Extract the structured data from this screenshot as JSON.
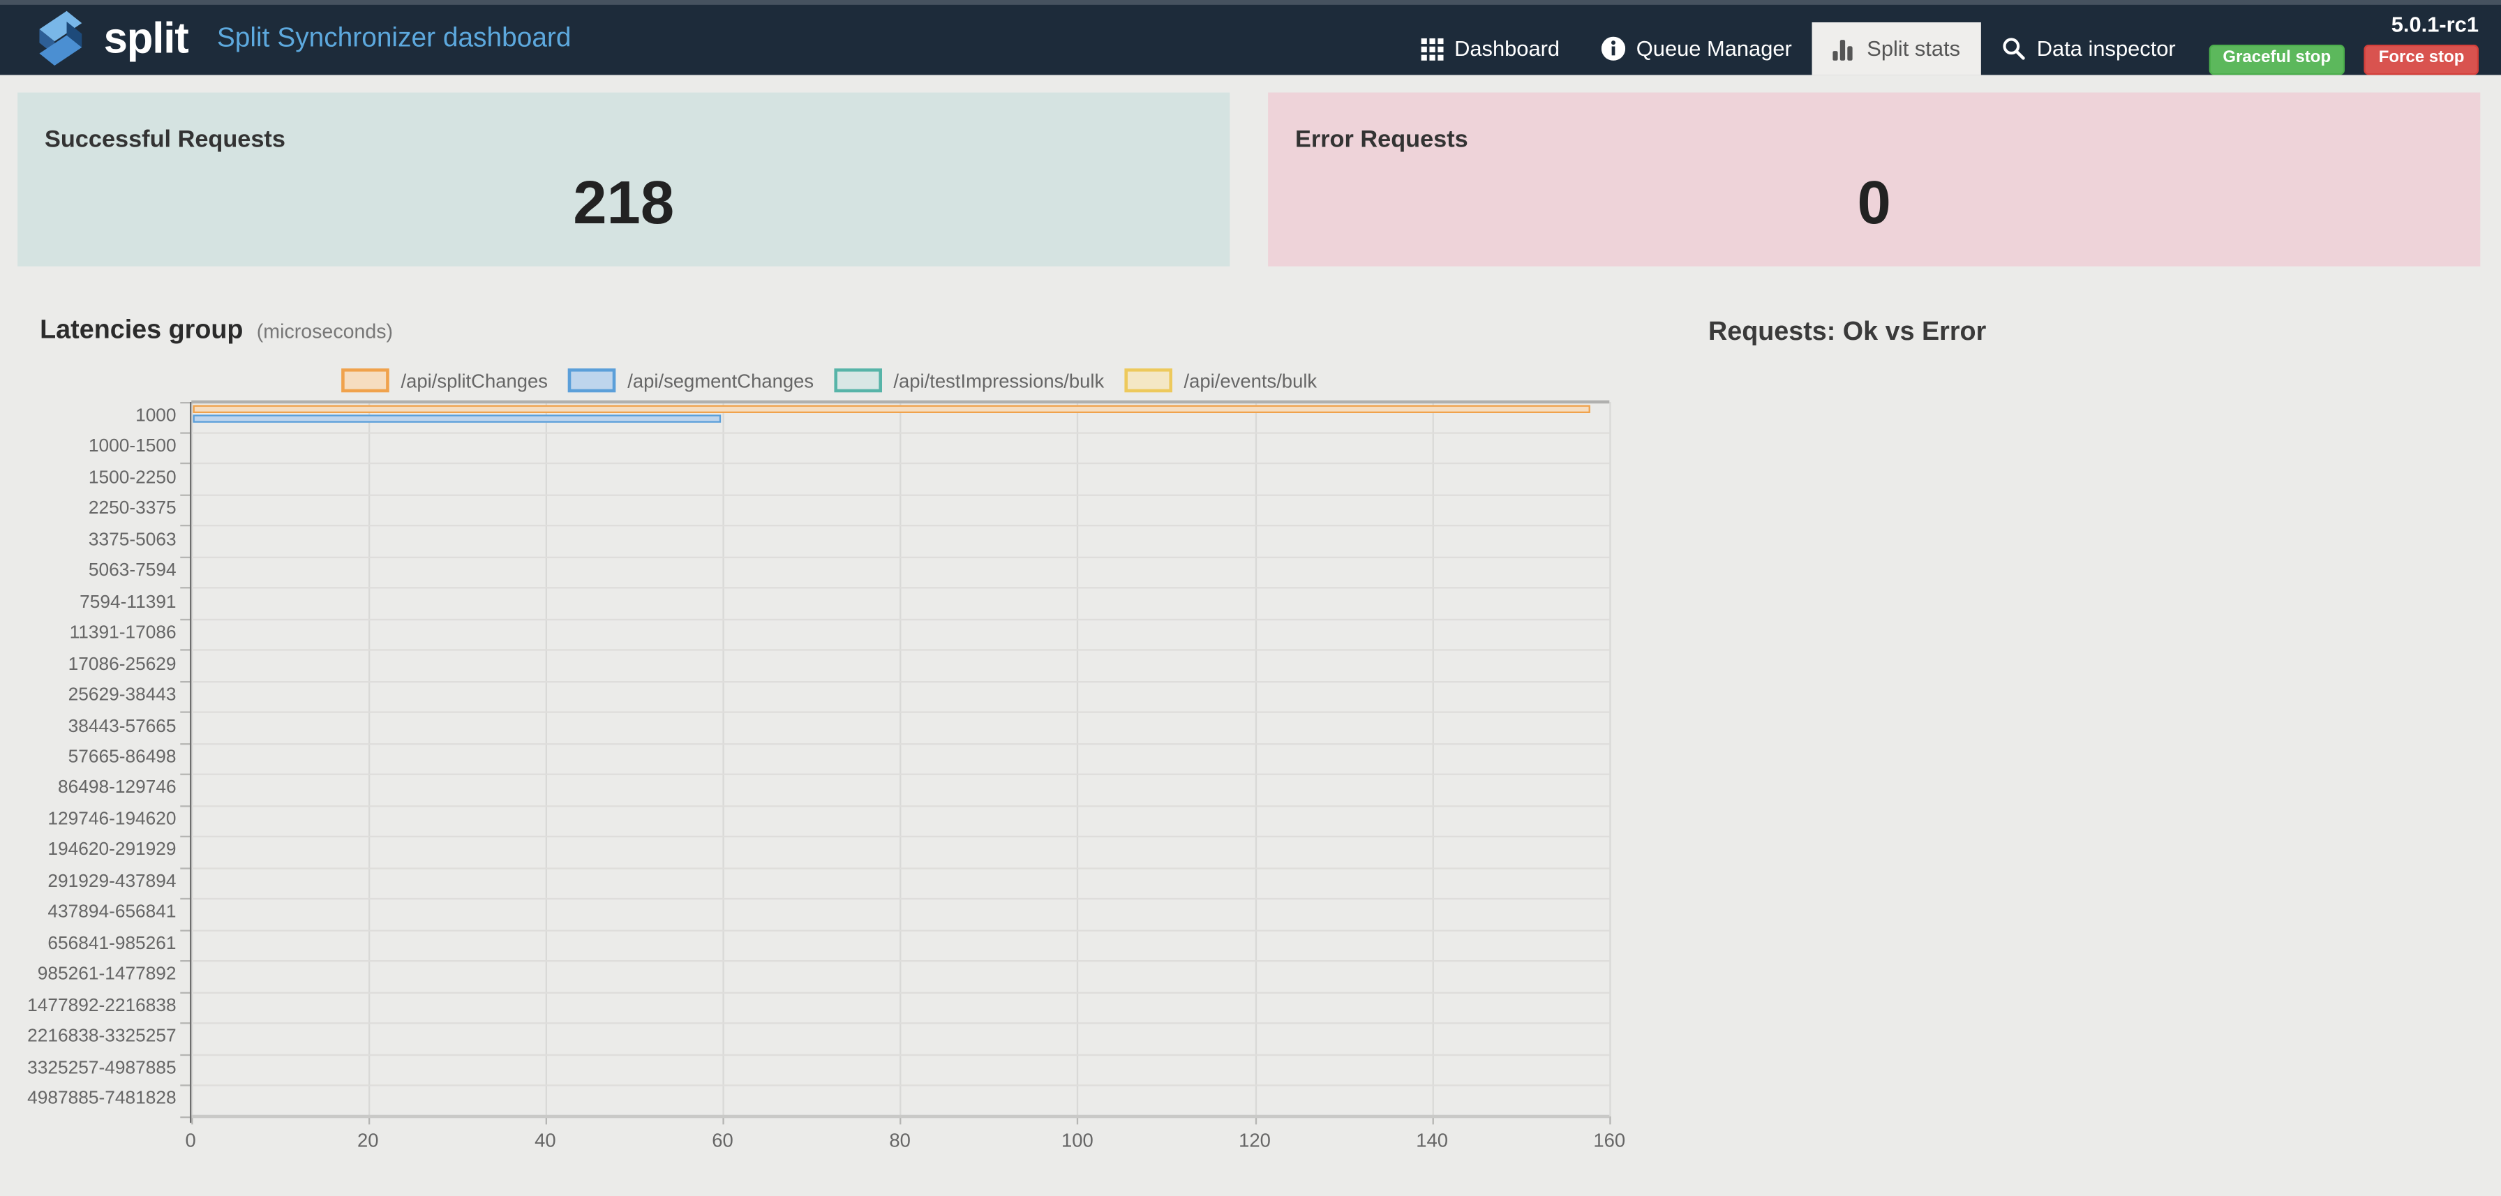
{
  "navbar": {
    "brand": "split",
    "title": "Split Synchronizer dashboard",
    "version": "5.0.1-rc1",
    "items": [
      {
        "label": "Dashboard",
        "icon": "grid-icon",
        "active": false
      },
      {
        "label": "Queue Manager",
        "icon": "info-circle-icon",
        "active": false
      },
      {
        "label": "Split stats",
        "icon": "bar-chart-icon",
        "active": true
      },
      {
        "label": "Data inspector",
        "icon": "search-icon",
        "active": false
      }
    ],
    "graceful_stop": "Graceful stop",
    "force_stop": "Force stop",
    "colors": {
      "bar_background": "#1d2b3a",
      "title_blue": "#5da9de",
      "graceful_green": "#5cb85c",
      "force_red": "#d9534f",
      "active_tab_background": "#efeeec"
    }
  },
  "cards": {
    "success": {
      "title": "Successful Requests",
      "value": "218",
      "background": "#d5e3e1"
    },
    "error": {
      "title": "Error Requests",
      "value": "0",
      "background": "#eed3d9"
    }
  },
  "latencies": {
    "title": "Latencies group",
    "subtitle": "(microseconds)"
  },
  "requests_chart": {
    "title": "Requests: Ok vs Error"
  },
  "chart_data": [
    {
      "type": "bar",
      "orientation": "horizontal",
      "title": "Latencies group (microseconds)",
      "legend_position": "top",
      "grid": true,
      "xlim": [
        0,
        160
      ],
      "x_ticks": [
        0,
        20,
        40,
        60,
        80,
        100,
        120,
        140,
        160
      ],
      "categories": [
        "1000",
        "1000-1500",
        "1500-2250",
        "2250-3375",
        "3375-5063",
        "5063-7594",
        "7594-11391",
        "11391-17086",
        "17086-25629",
        "25629-38443",
        "38443-57665",
        "57665-86498",
        "86498-129746",
        "129746-194620",
        "194620-291929",
        "291929-437894",
        "437894-656841",
        "656841-985261",
        "985261-1477892",
        "1477892-2216838",
        "2216838-3325257",
        "3325257-4987885",
        "4987885-7481828"
      ],
      "series": [
        {
          "name": "/api/splitChanges",
          "fill": "#f6ddc0",
          "border": "#f0a24c",
          "values": [
            158,
            0,
            0,
            0,
            0,
            0,
            0,
            0,
            0,
            0,
            0,
            0,
            0,
            0,
            0,
            0,
            0,
            0,
            0,
            0,
            0,
            0,
            0
          ]
        },
        {
          "name": "/api/segmentChanges",
          "fill": "#bed5ed",
          "border": "#5b9fd9",
          "values": [
            60,
            0,
            0,
            0,
            0,
            0,
            0,
            0,
            0,
            0,
            0,
            0,
            0,
            0,
            0,
            0,
            0,
            0,
            0,
            0,
            0,
            0,
            0
          ]
        },
        {
          "name": "/api/testImpressions/bulk",
          "fill": "#d8e7e5",
          "border": "#57b4a8",
          "values": [
            0,
            0,
            0,
            0,
            0,
            0,
            0,
            0,
            0,
            0,
            0,
            0,
            0,
            0,
            0,
            0,
            0,
            0,
            0,
            0,
            0,
            0,
            0
          ]
        },
        {
          "name": "/api/events/bulk",
          "fill": "#f4e7c5",
          "border": "#edc95c",
          "values": [
            0,
            0,
            0,
            0,
            0,
            0,
            0,
            0,
            0,
            0,
            0,
            0,
            0,
            0,
            0,
            0,
            0,
            0,
            0,
            0,
            0,
            0,
            0
          ]
        }
      ]
    },
    {
      "type": "pie",
      "title": "Requests: Ok vs Error",
      "categories": [],
      "values": []
    }
  ]
}
